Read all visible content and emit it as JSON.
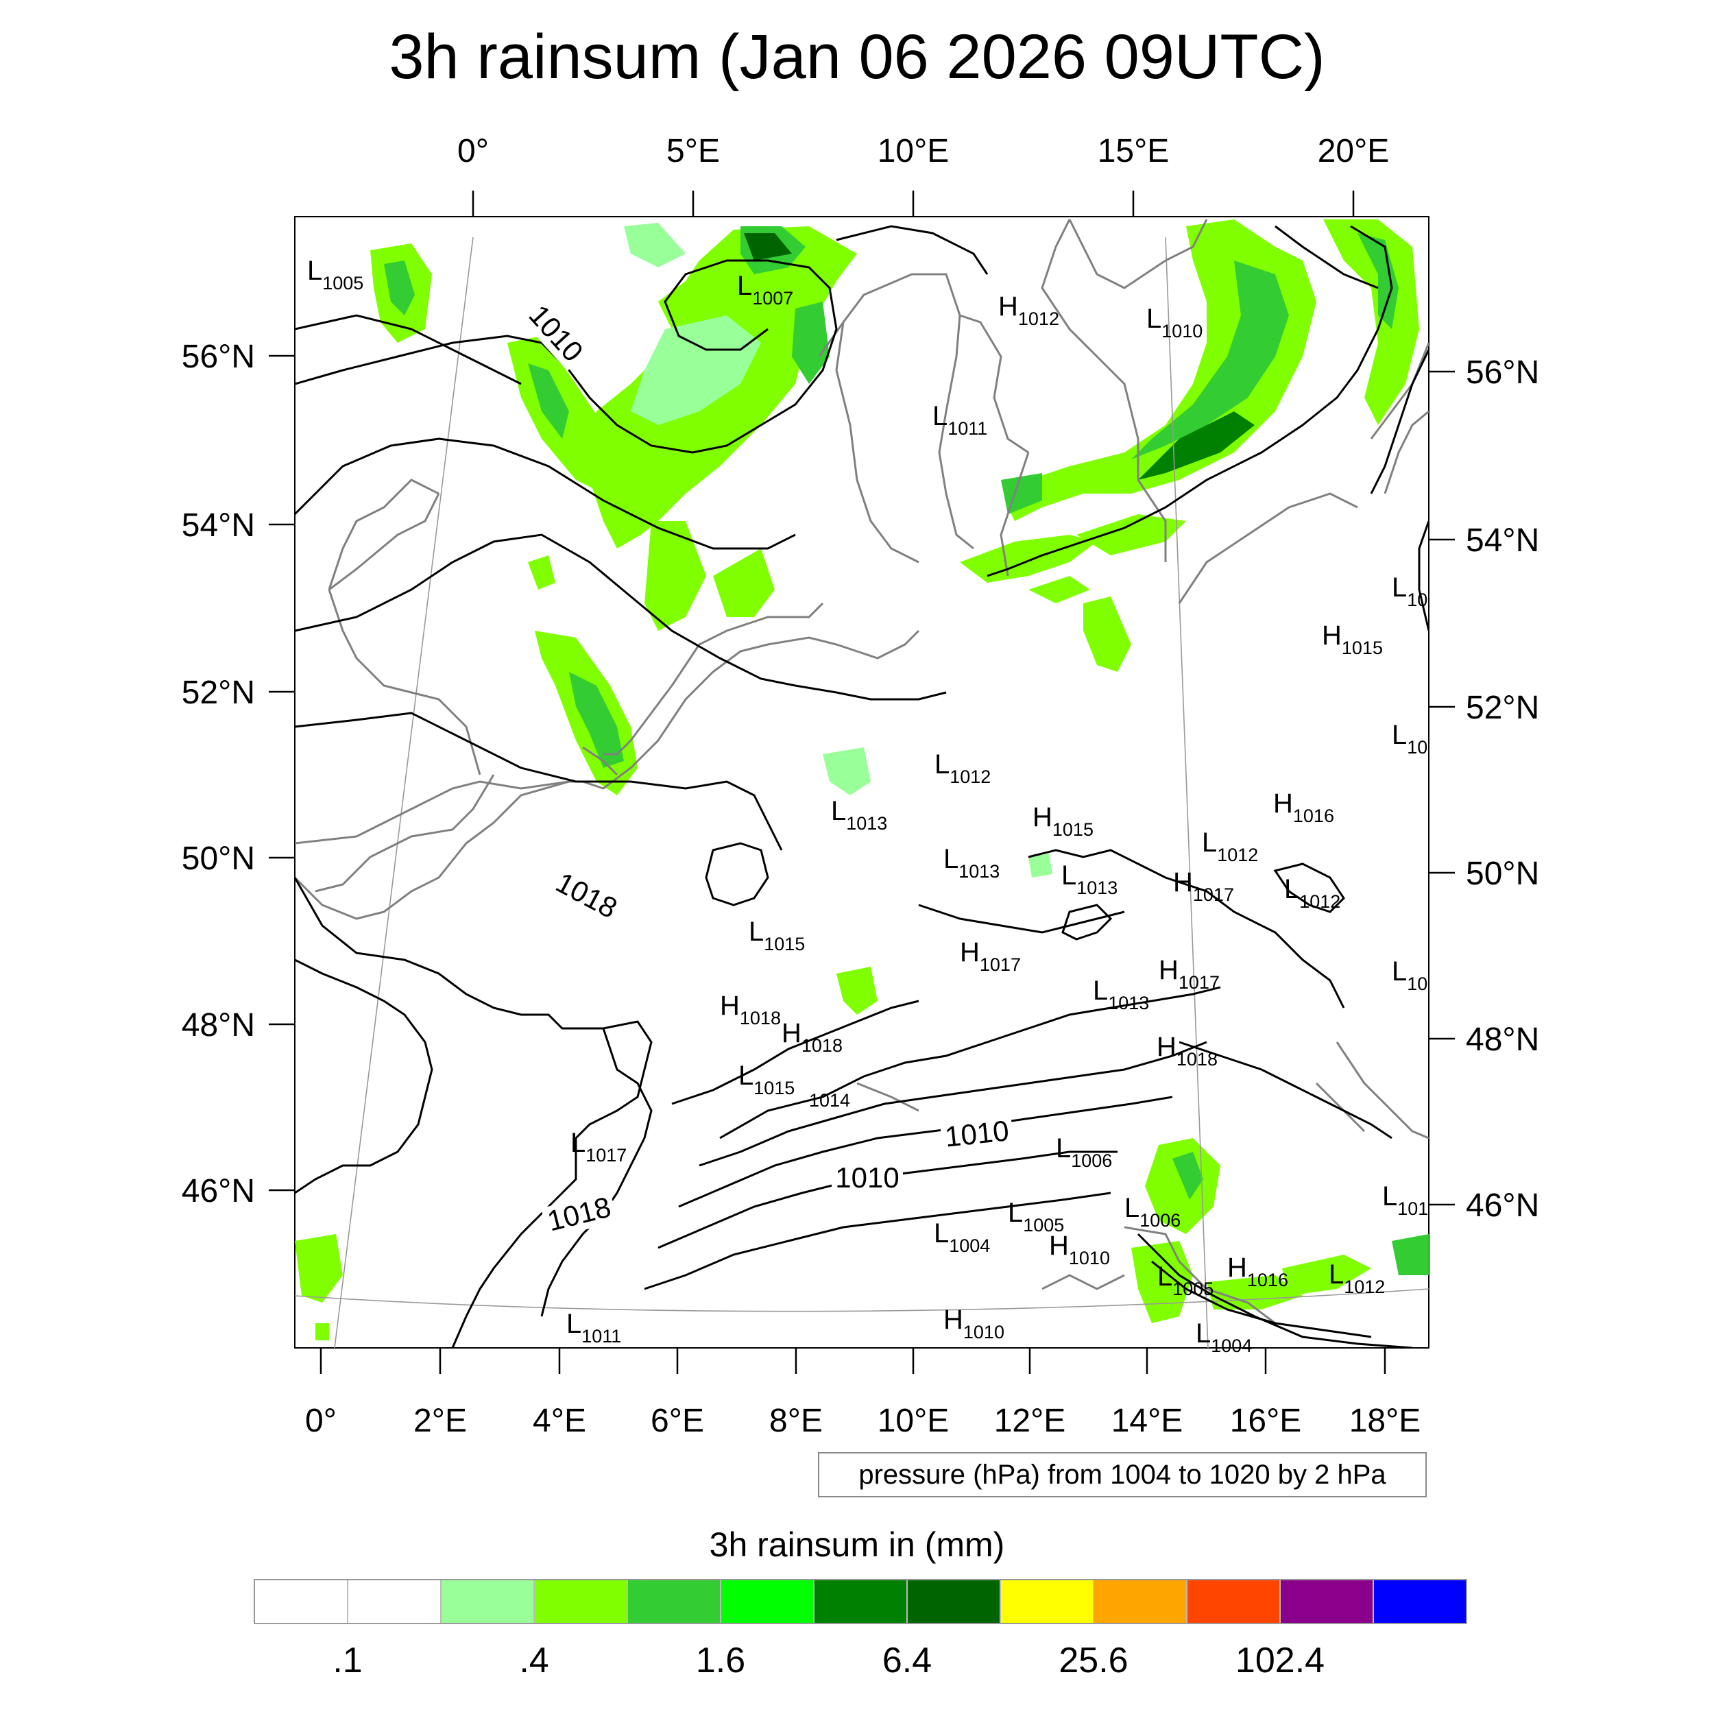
{
  "title": "3h rainsum (Jan 06 2026 09UTC)",
  "top_lon_labels": [
    "0°",
    "5°E",
    "10°E",
    "15°E",
    "20°E"
  ],
  "bottom_lon_labels": [
    "0°",
    "2°E",
    "4°E",
    "6°E",
    "8°E",
    "10°E",
    "12°E",
    "14°E",
    "16°E",
    "18°E"
  ],
  "left_lat_labels": [
    "56°N",
    "54°N",
    "52°N",
    "50°N",
    "48°N",
    "46°N"
  ],
  "right_lat_labels": [
    "56°N",
    "54°N",
    "52°N",
    "50°N",
    "48°N",
    "46°N"
  ],
  "contour_labels": [
    "1010",
    "1018",
    "1018",
    "1010",
    "1010"
  ],
  "pressure_centers": [
    {
      "t": "L",
      "v": "1005"
    },
    {
      "t": "L",
      "v": "1007"
    },
    {
      "t": "H",
      "v": "1012"
    },
    {
      "t": "L",
      "v": "1010"
    },
    {
      "t": "L",
      "v": "1011"
    },
    {
      "t": "L",
      "v": "10"
    },
    {
      "t": "H",
      "v": "1015"
    },
    {
      "t": "L",
      "v": "10"
    },
    {
      "t": "L",
      "v": "1012"
    },
    {
      "t": "L",
      "v": "1013"
    },
    {
      "t": "H",
      "v": "1015"
    },
    {
      "t": "H",
      "v": "1016"
    },
    {
      "t": "L",
      "v": "1012"
    },
    {
      "t": "L",
      "v": "1013"
    },
    {
      "t": "L",
      "v": "1013"
    },
    {
      "t": "H",
      "v": "1017"
    },
    {
      "t": "L",
      "v": "1012"
    },
    {
      "t": "L",
      "v": "1015"
    },
    {
      "t": "H",
      "v": "1017"
    },
    {
      "t": "H",
      "v": "1017"
    },
    {
      "t": "L",
      "v": "10"
    },
    {
      "t": "L",
      "v": "1013"
    },
    {
      "t": "H",
      "v": "1018"
    },
    {
      "t": "H",
      "v": "1018"
    },
    {
      "t": "H",
      "v": "1018"
    },
    {
      "t": "L",
      "v": "1015"
    },
    {
      "t": "",
      "v": "1014"
    },
    {
      "t": "L",
      "v": "1017"
    },
    {
      "t": "L",
      "v": "1006"
    },
    {
      "t": "L",
      "v": "1005"
    },
    {
      "t": "L",
      "v": "1006"
    },
    {
      "t": "L",
      "v": "1004"
    },
    {
      "t": "H",
      "v": "1010"
    },
    {
      "t": "L",
      "v": "101"
    },
    {
      "t": "L",
      "v": "1005"
    },
    {
      "t": "H",
      "v": "1016"
    },
    {
      "t": "L",
      "v": "1012"
    },
    {
      "t": "L",
      "v": "1011"
    },
    {
      "t": "H",
      "v": "1010"
    },
    {
      "t": "L",
      "v": "1004"
    }
  ],
  "pressure_note": "pressure (hPa) from 1004 to 1020 by 2 hPa",
  "legend": {
    "title": "3h rainsum in (mm)",
    "labels": [
      ".1",
      ".4",
      "1.6",
      "6.4",
      "25.6",
      "102.4"
    ],
    "colors": [
      "#ffffff",
      "#ffffff",
      "#99ff99",
      "#80ff00",
      "#33cc33",
      "#00ff00",
      "#008000",
      "#006400",
      "#ffff00",
      "#ffa500",
      "#ff4500",
      "#8b008b",
      "#0000ff"
    ]
  }
}
